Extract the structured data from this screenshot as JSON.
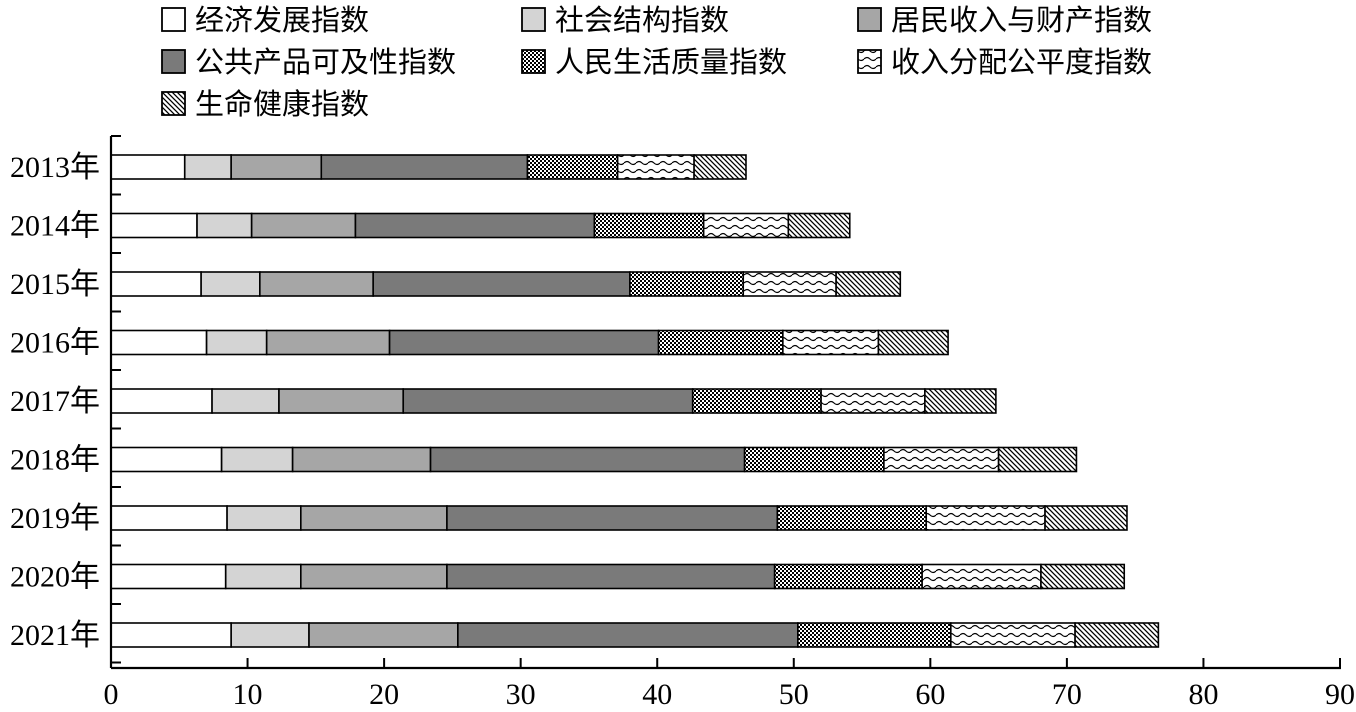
{
  "chart_data": {
    "type": "bar",
    "orientation": "horizontal",
    "stacked": true,
    "title": "",
    "xlabel": "",
    "ylabel": "",
    "xlim": [
      0,
      90
    ],
    "x_ticks": [
      0,
      10,
      20,
      30,
      40,
      50,
      60,
      70,
      80,
      90
    ],
    "legend_position": "top",
    "grid": false,
    "categories": [
      "2013年",
      "2014年",
      "2015年",
      "2016年",
      "2017年",
      "2018年",
      "2019年",
      "2020年",
      "2021年"
    ],
    "series": [
      {
        "name": "经济发展指数",
        "pattern": "white",
        "values": [
          5.4,
          6.3,
          6.6,
          7.0,
          7.4,
          8.1,
          8.5,
          8.4,
          8.8
        ]
      },
      {
        "name": "社会结构指数",
        "pattern": "light-gray",
        "values": [
          3.4,
          4.0,
          4.3,
          4.4,
          4.9,
          5.2,
          5.4,
          5.5,
          5.7
        ]
      },
      {
        "name": "居民收入与财产指数",
        "pattern": "medium-gray",
        "values": [
          6.6,
          7.6,
          8.3,
          9.0,
          9.1,
          10.1,
          10.7,
          10.7,
          10.9
        ]
      },
      {
        "name": "公共产品可及性指数",
        "pattern": "dark-gray",
        "values": [
          15.1,
          17.5,
          18.8,
          19.7,
          21.2,
          23.0,
          24.2,
          24.0,
          24.9
        ]
      },
      {
        "name": "人民生活质量指数",
        "pattern": "crosshatch",
        "values": [
          6.6,
          8.0,
          8.3,
          9.1,
          9.4,
          10.2,
          10.9,
          10.8,
          11.2
        ]
      },
      {
        "name": "收入分配公平度指数",
        "pattern": "wave",
        "values": [
          5.6,
          6.2,
          6.8,
          7.0,
          7.6,
          8.4,
          8.7,
          8.7,
          9.1
        ]
      },
      {
        "name": "生命健康指数",
        "pattern": "diagonal",
        "values": [
          3.8,
          4.5,
          4.7,
          5.1,
          5.2,
          5.7,
          6.0,
          6.1,
          6.1
        ]
      }
    ]
  }
}
